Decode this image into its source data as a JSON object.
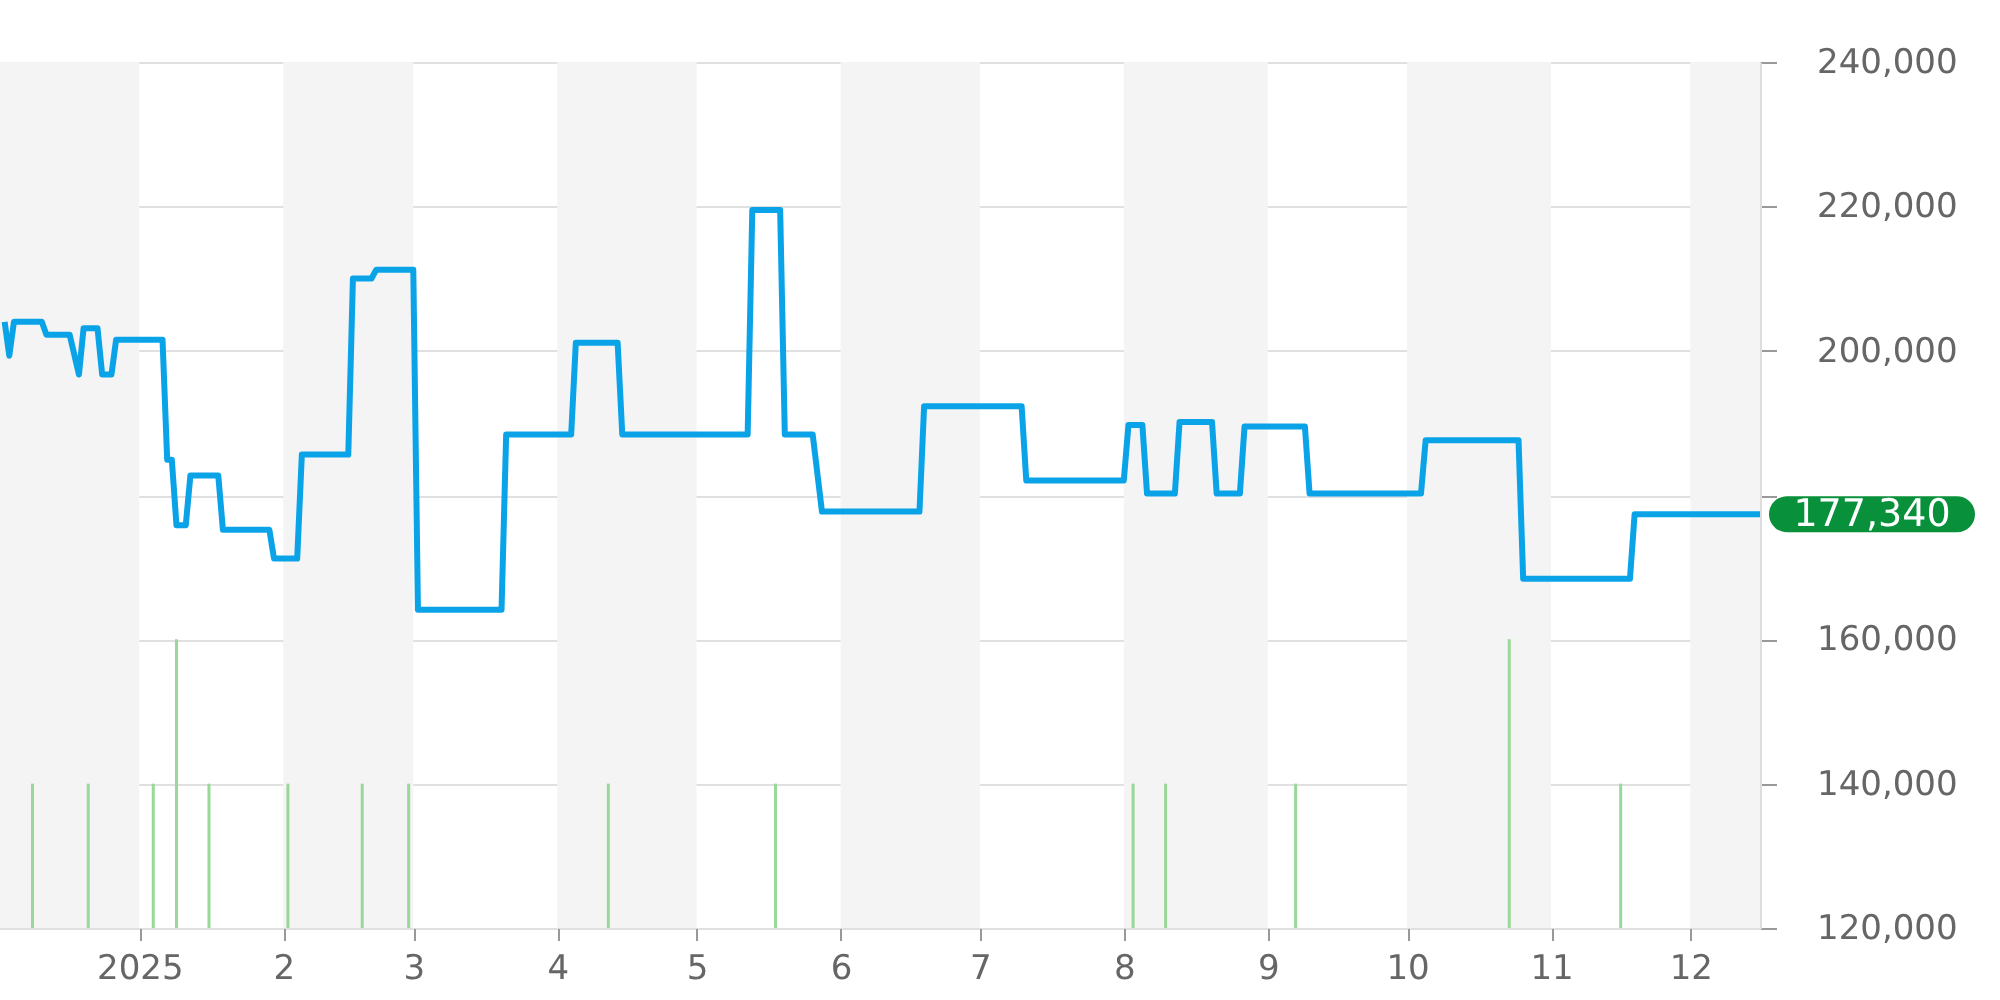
{
  "chart_data": {
    "type": "line",
    "xlim": [
      "2024-12-02",
      "2025-12-16"
    ],
    "xticks": [
      {
        "value": "2025-01-01",
        "label": "2025"
      },
      {
        "value": "2025-02-01",
        "label": "2"
      },
      {
        "value": "2025-03-01",
        "label": "3"
      },
      {
        "value": "2025-04-01",
        "label": "4"
      },
      {
        "value": "2025-05-01",
        "label": "5"
      },
      {
        "value": "2025-06-01",
        "label": "6"
      },
      {
        "value": "2025-07-01",
        "label": "7"
      },
      {
        "value": "2025-08-01",
        "label": "8"
      },
      {
        "value": "2025-09-01",
        "label": "9"
      },
      {
        "value": "2025-10-01",
        "label": "10"
      },
      {
        "value": "2025-11-01",
        "label": "11"
      },
      {
        "value": "2025-12-01",
        "label": "12"
      }
    ],
    "ylim": [
      120000,
      240000
    ],
    "yticks": [
      {
        "value": 120000,
        "label": "120,000"
      },
      {
        "value": 140000,
        "label": "140,000"
      },
      {
        "value": 160000,
        "label": "160,000"
      },
      {
        "value": 180000,
        "label": null
      },
      {
        "value": 200000,
        "label": "200,000"
      },
      {
        "value": 220000,
        "label": "220,000"
      },
      {
        "value": 240000,
        "label": "240,000"
      }
    ],
    "grid": "y",
    "bands": [
      {
        "axis": "x",
        "from": "2024-12-02",
        "to": "2025-01-01",
        "color": "#f4f4f4"
      },
      {
        "axis": "x",
        "from": "2025-02-01",
        "to": "2025-03-01",
        "color": "#f4f4f4"
      },
      {
        "axis": "x",
        "from": "2025-04-01",
        "to": "2025-05-01",
        "color": "#f4f4f4"
      },
      {
        "axis": "x",
        "from": "2025-06-01",
        "to": "2025-07-01",
        "color": "#f4f4f4"
      },
      {
        "axis": "x",
        "from": "2025-08-01",
        "to": "2025-09-01",
        "color": "#f4f4f4"
      },
      {
        "axis": "x",
        "from": "2025-10-01",
        "to": "2025-11-01",
        "color": "#f4f4f4"
      },
      {
        "axis": "x",
        "from": "2025-12-01",
        "to": "2025-12-16",
        "color": "#f4f4f4"
      }
    ],
    "annotations": [
      {
        "text": "177,340",
        "x": "2025-12-16",
        "y": 177340
      }
    ],
    "series": [
      {
        "type": "bar",
        "color": "#98d898",
        "x": [
          "2024-12-09",
          "2024-12-21",
          "2025-01-04",
          "2025-01-09",
          "2025-01-16",
          "2025-02-02",
          "2025-02-18",
          "2025-02-28",
          "2025-04-12",
          "2025-05-18",
          "2025-08-03",
          "2025-08-10",
          "2025-09-07",
          "2025-10-23",
          "2025-11-16"
        ],
        "values": [
          140000,
          140000,
          140000,
          160000,
          140000,
          140000,
          140000,
          140000,
          140000,
          140000,
          140000,
          140000,
          140000,
          160000,
          140000
        ]
      },
      {
        "color": "#0aa3e8",
        "x": [
          "2024-12-03",
          "2024-12-04",
          "2024-12-05",
          "2024-12-11",
          "2024-12-12",
          "2024-12-17",
          "2024-12-19",
          "2024-12-20",
          "2024-12-23",
          "2024-12-24",
          "2024-12-26",
          "2024-12-27",
          "2025-01-06",
          "2025-01-07",
          "2025-01-08",
          "2025-01-09",
          "2025-01-11",
          "2025-01-12",
          "2025-01-18",
          "2025-01-19",
          "2025-01-29",
          "2025-01-30",
          "2025-02-04",
          "2025-02-05",
          "2025-02-15",
          "2025-02-16",
          "2025-02-20",
          "2025-02-21",
          "2025-03-01",
          "2025-03-02",
          "2025-03-20",
          "2025-03-21",
          "2025-04-04",
          "2025-04-05",
          "2025-04-14",
          "2025-04-15",
          "2025-05-12",
          "2025-05-13",
          "2025-05-19",
          "2025-05-20",
          "2025-05-26",
          "2025-05-28",
          "2025-06-18",
          "2025-06-19",
          "2025-07-10",
          "2025-07-11",
          "2025-08-01",
          "2025-08-02",
          "2025-08-05",
          "2025-08-06",
          "2025-08-12",
          "2025-08-13",
          "2025-08-20",
          "2025-08-21",
          "2025-08-26",
          "2025-08-27",
          "2025-09-09",
          "2025-09-10",
          "2025-10-04",
          "2025-10-05",
          "2025-10-25",
          "2025-10-26",
          "2025-11-18",
          "2025-11-19",
          "2025-12-16"
        ],
        "values": [
          204000,
          199300,
          204000,
          204000,
          202200,
          202200,
          196700,
          203100,
          203100,
          196700,
          196700,
          201500,
          201500,
          184900,
          184900,
          175800,
          175800,
          182700,
          182700,
          175200,
          175200,
          171200,
          171200,
          185600,
          185600,
          210000,
          210000,
          211200,
          211200,
          164100,
          164100,
          188400,
          188400,
          201100,
          201100,
          188400,
          188400,
          219500,
          219500,
          188400,
          188400,
          177700,
          177700,
          192300,
          192300,
          182000,
          182000,
          189700,
          189700,
          180200,
          180200,
          190100,
          190100,
          180200,
          180200,
          189500,
          189500,
          180200,
          180200,
          187600,
          187600,
          168400,
          168400,
          177340,
          177340
        ]
      }
    ]
  }
}
